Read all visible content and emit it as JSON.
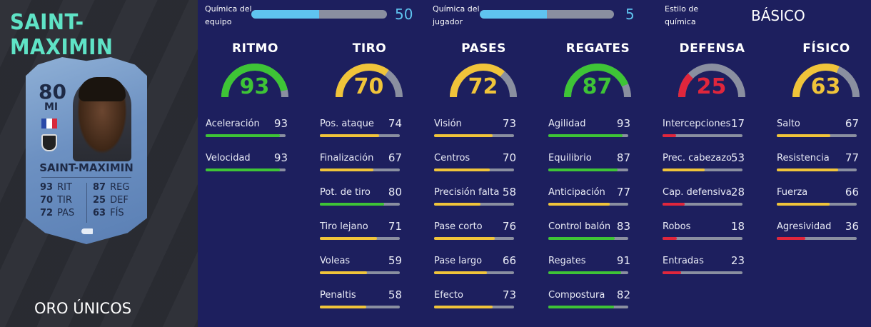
{
  "player": {
    "title": "SAINT-MAXIMIN",
    "card_name": "SAINT-MAXIMIN",
    "rating": "80",
    "position": "MI",
    "card_type": "ORO ÚNICOS",
    "card_stats_left": [
      {
        "value": "93",
        "label": "RIT"
      },
      {
        "value": "70",
        "label": "TIR"
      },
      {
        "value": "72",
        "label": "PAS"
      }
    ],
    "card_stats_right": [
      {
        "value": "87",
        "label": "REG"
      },
      {
        "value": "25",
        "label": "DEF"
      },
      {
        "value": "63",
        "label": "FÍS"
      }
    ]
  },
  "chemistry": {
    "team_label": "Química del equipo",
    "team_value": 50,
    "team_max": 100,
    "player_label": "Química del jugador",
    "player_value": 5,
    "player_max": 10,
    "style_label": "Estilo de química",
    "style_value": "BÁSICO"
  },
  "colors": {
    "high": "#3ec436",
    "mid": "#f0c43a",
    "low": "#e0263c",
    "track": "#8a8fa0",
    "accent": "#5fc4f0"
  },
  "categories": [
    {
      "title": "RITMO",
      "value": 93,
      "attributes": [
        {
          "name": "Aceleración",
          "value": 93
        },
        {
          "name": "Velocidad",
          "value": 93
        }
      ]
    },
    {
      "title": "TIRO",
      "value": 70,
      "attributes": [
        {
          "name": "Pos. ataque",
          "value": 74
        },
        {
          "name": "Finalización",
          "value": 67
        },
        {
          "name": "Pot. de tiro",
          "value": 80
        },
        {
          "name": "Tiro lejano",
          "value": 71
        },
        {
          "name": "Voleas",
          "value": 59
        },
        {
          "name": "Penaltis",
          "value": 58
        }
      ]
    },
    {
      "title": "PASES",
      "value": 72,
      "attributes": [
        {
          "name": "Visión",
          "value": 73
        },
        {
          "name": "Centros",
          "value": 70
        },
        {
          "name": "Precisión falta",
          "value": 58
        },
        {
          "name": "Pase corto",
          "value": 76
        },
        {
          "name": "Pase largo",
          "value": 66
        },
        {
          "name": "Efecto",
          "value": 73
        }
      ]
    },
    {
      "title": "REGATES",
      "value": 87,
      "attributes": [
        {
          "name": "Agilidad",
          "value": 93
        },
        {
          "name": "Equilibrio",
          "value": 87
        },
        {
          "name": "Anticipación",
          "value": 77
        },
        {
          "name": "Control balón",
          "value": 83
        },
        {
          "name": "Regates",
          "value": 91
        },
        {
          "name": "Compostura",
          "value": 82
        }
      ]
    },
    {
      "title": "DEFENSA",
      "value": 25,
      "attributes": [
        {
          "name": "Intercepciones",
          "value": 17
        },
        {
          "name": "Prec. cabezazo",
          "value": 53
        },
        {
          "name": "Cap. defensiva",
          "value": 28
        },
        {
          "name": "Robos",
          "value": 18
        },
        {
          "name": "Entradas",
          "value": 23
        }
      ]
    },
    {
      "title": "FÍSICO",
      "value": 63,
      "attributes": [
        {
          "name": "Salto",
          "value": 67
        },
        {
          "name": "Resistencia",
          "value": 77
        },
        {
          "name": "Fuerza",
          "value": 66
        },
        {
          "name": "Agresividad",
          "value": 36
        }
      ]
    }
  ]
}
